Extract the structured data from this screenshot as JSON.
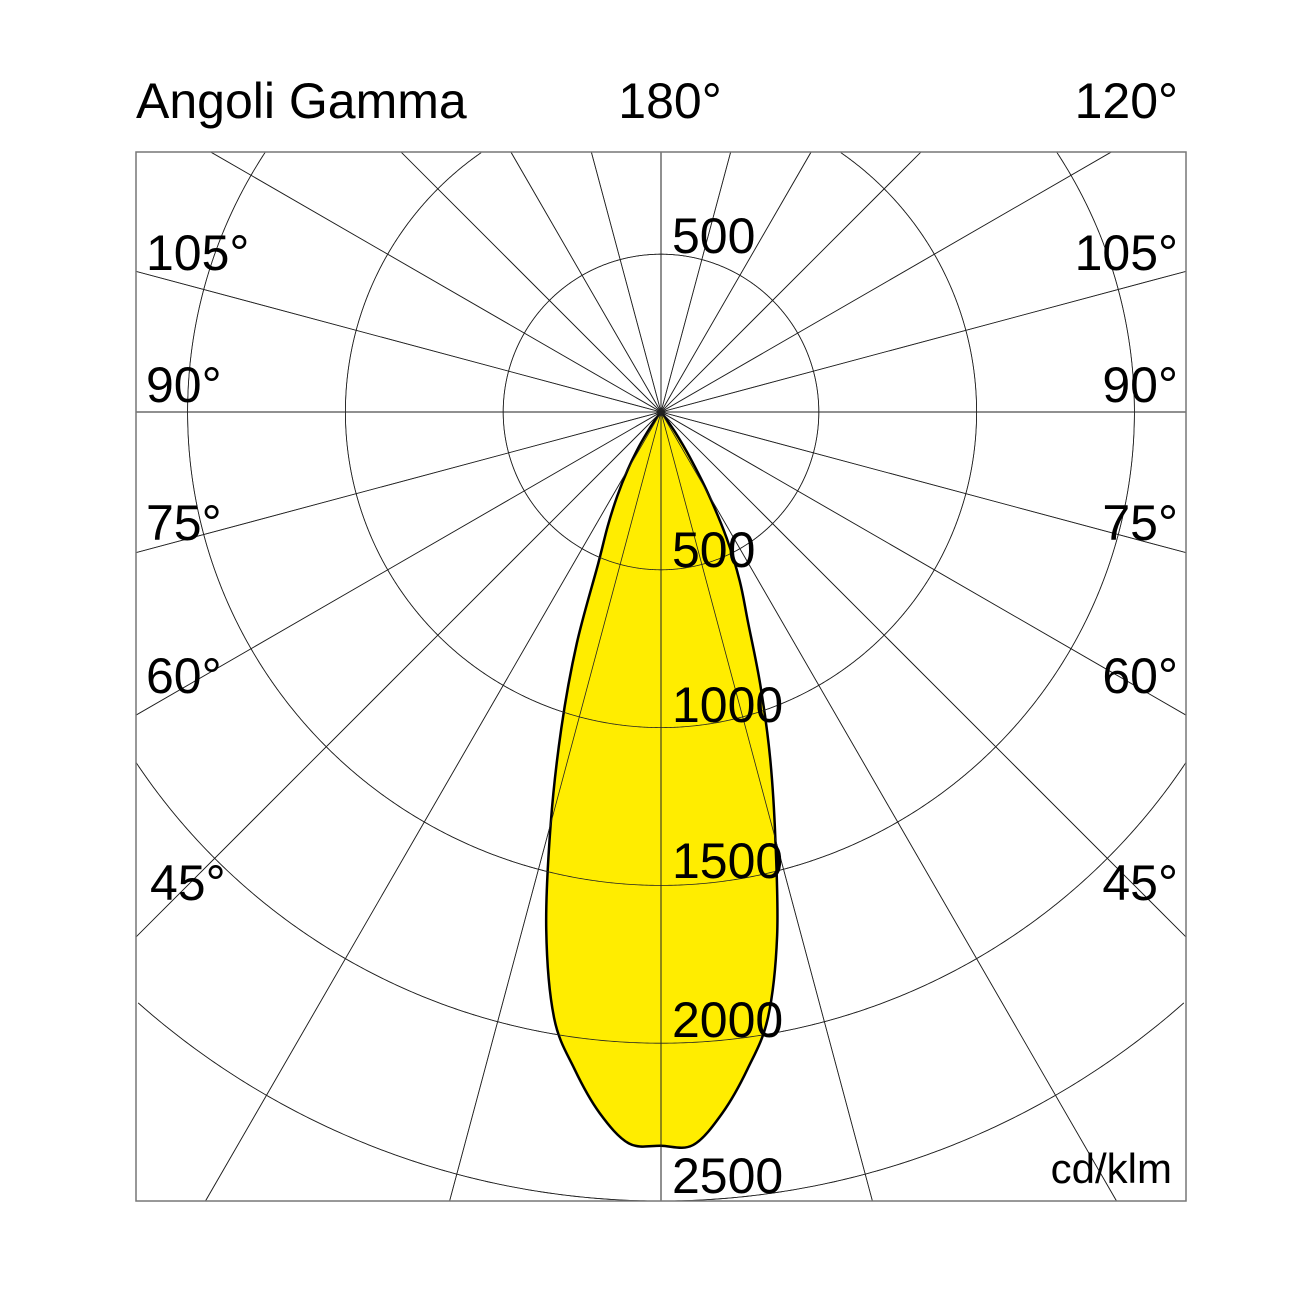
{
  "chart_data": {
    "type": "polar",
    "title": "Angoli Gamma",
    "unit": "cd/klm",
    "top_labels": {
      "center": "180°",
      "right": "120°"
    },
    "angle_labels_left": [
      "105°",
      "90°",
      "75°",
      "60°",
      "45°"
    ],
    "angle_labels_right": [
      "105°",
      "90°",
      "75°",
      "60°",
      "45°"
    ],
    "radial_tick_top": "500",
    "radial_ticks": [
      "500",
      "1000",
      "1500",
      "2000",
      "2500"
    ],
    "radial_values": [
      500,
      1000,
      1500,
      2000,
      2500
    ],
    "spoke_step_deg": 15,
    "grid": true,
    "fill_color": "#FFED00",
    "series": [
      {
        "side": "right",
        "gamma": [
          0,
          2.5,
          5,
          7.5,
          10,
          12.5,
          15,
          17.5,
          20,
          22.5,
          25,
          27.5,
          30,
          32.5,
          35,
          40,
          45
        ],
        "values": [
          2325,
          2325,
          2230,
          2100,
          1950,
          1700,
          1400,
          1150,
          920,
          720,
          590,
          450,
          300,
          170,
          80,
          10,
          0
        ]
      },
      {
        "side": "left",
        "gamma": [
          0,
          2.5,
          5,
          7.5,
          10,
          12.5,
          15,
          17.5,
          20,
          22.5,
          25,
          27.5,
          30,
          32.5,
          35,
          40,
          45
        ],
        "values": [
          2325,
          2320,
          2230,
          2100,
          1950,
          1680,
          1350,
          1050,
          780,
          520,
          400,
          300,
          210,
          130,
          60,
          10,
          0
        ]
      }
    ]
  }
}
